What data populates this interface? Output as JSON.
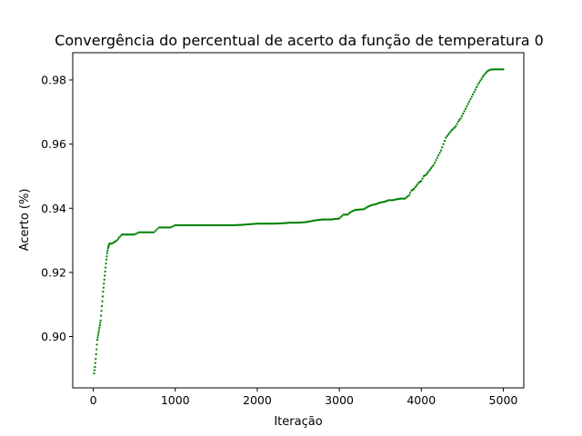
{
  "chart_data": {
    "type": "scatter",
    "title": "Convergência do percentual de acerto da função de temperatura 0",
    "xlabel": "Iteração",
    "ylabel": "Acerto (%)",
    "xlim": [
      -250,
      5250
    ],
    "ylim": [
      0.884,
      0.9885
    ],
    "xticks": [
      0,
      1000,
      2000,
      3000,
      4000,
      5000
    ],
    "xtick_labels": [
      "0",
      "1000",
      "2000",
      "3000",
      "4000",
      "5000"
    ],
    "yticks": [
      0.9,
      0.92,
      0.94,
      0.96,
      0.98
    ],
    "ytick_labels": [
      "0.90",
      "0.92",
      "0.94",
      "0.96",
      "0.98"
    ],
    "grid": false,
    "marker_color": "#008000",
    "series": [
      {
        "points": [
          [
            10,
            0.8885
          ],
          [
            20,
            0.8905
          ],
          [
            30,
            0.893
          ],
          [
            40,
            0.896
          ],
          [
            50,
            0.899
          ],
          [
            60,
            0.9005
          ],
          [
            70,
            0.902
          ],
          [
            80,
            0.9035
          ],
          [
            90,
            0.905
          ],
          [
            100,
            0.908
          ],
          [
            110,
            0.911
          ],
          [
            120,
            0.914
          ],
          [
            130,
            0.9165
          ],
          [
            140,
            0.919
          ],
          [
            150,
            0.9215
          ],
          [
            160,
            0.924
          ],
          [
            170,
            0.926
          ],
          [
            180,
            0.9275
          ],
          [
            190,
            0.9285
          ],
          [
            200,
            0.929
          ],
          [
            230,
            0.929
          ],
          [
            260,
            0.9295
          ],
          [
            290,
            0.93
          ],
          [
            320,
            0.931
          ],
          [
            350,
            0.9318
          ],
          [
            400,
            0.9318
          ],
          [
            450,
            0.9318
          ],
          [
            500,
            0.9318
          ],
          [
            560,
            0.9325
          ],
          [
            620,
            0.9325
          ],
          [
            680,
            0.9325
          ],
          [
            740,
            0.9325
          ],
          [
            800,
            0.934
          ],
          [
            870,
            0.934
          ],
          [
            940,
            0.934
          ],
          [
            1000,
            0.9347
          ],
          [
            1100,
            0.9347
          ],
          [
            1200,
            0.9347
          ],
          [
            1300,
            0.9347
          ],
          [
            1400,
            0.9347
          ],
          [
            1500,
            0.9347
          ],
          [
            1600,
            0.9347
          ],
          [
            1700,
            0.9347
          ],
          [
            1800,
            0.9348
          ],
          [
            1900,
            0.935
          ],
          [
            2000,
            0.9352
          ],
          [
            2100,
            0.9352
          ],
          [
            2200,
            0.9352
          ],
          [
            2300,
            0.9353
          ],
          [
            2400,
            0.9355
          ],
          [
            2500,
            0.9355
          ],
          [
            2600,
            0.9357
          ],
          [
            2700,
            0.9362
          ],
          [
            2800,
            0.9365
          ],
          [
            2900,
            0.9365
          ],
          [
            3000,
            0.9368
          ],
          [
            3050,
            0.938
          ],
          [
            3100,
            0.938
          ],
          [
            3150,
            0.939
          ],
          [
            3200,
            0.9395
          ],
          [
            3300,
            0.9397
          ],
          [
            3350,
            0.9405
          ],
          [
            3400,
            0.941
          ],
          [
            3450,
            0.9413
          ],
          [
            3500,
            0.9418
          ],
          [
            3550,
            0.942
          ],
          [
            3600,
            0.9425
          ],
          [
            3650,
            0.9425
          ],
          [
            3700,
            0.9428
          ],
          [
            3750,
            0.943
          ],
          [
            3800,
            0.943
          ],
          [
            3850,
            0.944
          ],
          [
            3880,
            0.9455
          ],
          [
            3910,
            0.946
          ],
          [
            3940,
            0.947
          ],
          [
            3970,
            0.948
          ],
          [
            4000,
            0.9485
          ],
          [
            4030,
            0.95
          ],
          [
            4060,
            0.9505
          ],
          [
            4090,
            0.9515
          ],
          [
            4120,
            0.9525
          ],
          [
            4150,
            0.9535
          ],
          [
            4180,
            0.955
          ],
          [
            4210,
            0.9565
          ],
          [
            4240,
            0.958
          ],
          [
            4270,
            0.96
          ],
          [
            4300,
            0.962
          ],
          [
            4330,
            0.963
          ],
          [
            4360,
            0.964
          ],
          [
            4390,
            0.9648
          ],
          [
            4420,
            0.9655
          ],
          [
            4450,
            0.967
          ],
          [
            4480,
            0.968
          ],
          [
            4510,
            0.9695
          ],
          [
            4540,
            0.971
          ],
          [
            4570,
            0.9725
          ],
          [
            4600,
            0.974
          ],
          [
            4630,
            0.9755
          ],
          [
            4660,
            0.977
          ],
          [
            4690,
            0.9785
          ],
          [
            4720,
            0.9798
          ],
          [
            4750,
            0.981
          ],
          [
            4780,
            0.982
          ],
          [
            4810,
            0.9828
          ],
          [
            4840,
            0.9832
          ],
          [
            4870,
            0.9833
          ],
          [
            4900,
            0.9833
          ],
          [
            4950,
            0.9833
          ],
          [
            5000,
            0.9833
          ]
        ]
      }
    ]
  }
}
